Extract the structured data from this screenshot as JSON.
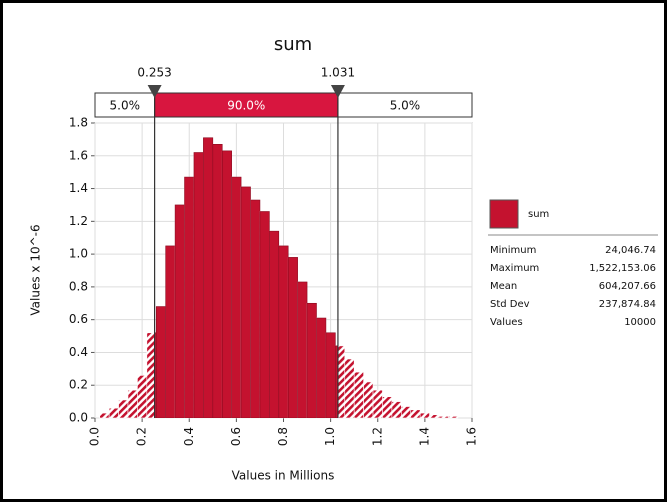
{
  "chart_data": {
    "type": "histogram",
    "title": "sum",
    "x_label": "Values in Millions",
    "y_label": "Values x 10^-6",
    "bins": [
      0.02,
      0.06,
      0.1,
      0.14,
      0.18,
      0.22,
      0.26,
      0.3,
      0.34,
      0.38,
      0.42,
      0.46,
      0.5,
      0.54,
      0.58,
      0.62,
      0.66,
      0.7,
      0.74,
      0.78,
      0.82,
      0.86,
      0.9,
      0.94,
      0.98,
      1.02,
      1.06,
      1.1,
      1.14,
      1.18,
      1.22,
      1.26,
      1.3,
      1.34,
      1.38,
      1.42,
      1.46,
      1.5,
      1.54
    ],
    "values": [
      0.03,
      0.06,
      0.11,
      0.17,
      0.26,
      0.52,
      0.68,
      1.05,
      1.3,
      1.47,
      1.62,
      1.71,
      1.67,
      1.63,
      1.47,
      1.41,
      1.33,
      1.26,
      1.14,
      1.05,
      0.98,
      0.83,
      0.7,
      0.61,
      0.52,
      0.44,
      0.36,
      0.28,
      0.22,
      0.17,
      0.13,
      0.1,
      0.07,
      0.05,
      0.03,
      0.02,
      0.01,
      0.01
    ],
    "color": "#c4122f",
    "xlim": [
      0,
      1.6
    ],
    "xticks": [
      {
        "value": 0,
        "label": "0.0"
      },
      0.2,
      0.4,
      0.6,
      0.8,
      {
        "value": 1,
        "label": "1.0"
      },
      1.2,
      1.4,
      1.6
    ],
    "ylim": [
      0,
      1.8
    ],
    "yticks": [
      {
        "value": 0,
        "label": "0.0"
      },
      0.2,
      0.4,
      0.6,
      0.8,
      {
        "value": 1,
        "label": "1.0"
      },
      1.2,
      1.4,
      1.6,
      1.8
    ],
    "grid": true,
    "markers": [
      0.253,
      1.031
    ],
    "percentiles": {
      "values": [
        5,
        90,
        5
      ],
      "value_labels": [
        "5.0%",
        "90.0%",
        "5.0%"
      ]
    },
    "legend": "sum",
    "stats": [
      [
        "Minimum",
        "24,046.74"
      ],
      [
        "Maximum",
        "1,522,153.06"
      ],
      [
        "Mean",
        "604,207.66"
      ],
      [
        "Std Dev",
        "237,874.84"
      ],
      [
        "Values",
        "10000"
      ]
    ]
  }
}
